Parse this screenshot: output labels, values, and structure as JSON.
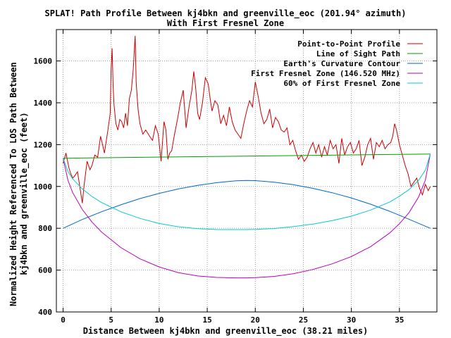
{
  "chart_data": {
    "type": "line",
    "title": "SPLAT! Path Profile Between kj4bkn and greenville_eoc (201.94° azimuth)",
    "subtitle": "With First Fresnel Zone",
    "xlabel": "Distance Between kj4bkn and greenville_eoc (38.21 miles)",
    "ylabel": "Normalized Height Referenced To LOS Path Between\nkj4bkn and greenville_eoc (feet)",
    "xlim": [
      -0.7,
      38.9
    ],
    "ylim": [
      400,
      1750
    ],
    "grid": true,
    "legend_position": "top-right",
    "x_ticks": [
      0,
      5,
      10,
      15,
      20,
      25,
      30,
      35
    ],
    "y_ticks": [
      400,
      600,
      800,
      1000,
      1200,
      1400,
      1600
    ],
    "series": [
      {
        "name": "Point-to-Point Profile",
        "color": "#cc0000",
        "x": [
          0,
          0.3,
          0.6,
          0.8,
          1.0,
          1.2,
          1.5,
          1.8,
          2.0,
          2.2,
          2.5,
          2.8,
          3.0,
          3.3,
          3.6,
          3.9,
          4.1,
          4.3,
          4.5,
          4.7,
          4.9,
          5.0,
          5.1,
          5.2,
          5.3,
          5.5,
          5.7,
          5.9,
          6.1,
          6.3,
          6.5,
          6.7,
          6.9,
          7.1,
          7.3,
          7.5,
          7.6,
          7.8,
          8.0,
          8.3,
          8.6,
          9.0,
          9.3,
          9.6,
          9.9,
          10.2,
          10.5,
          10.7,
          10.9,
          11.1,
          11.3,
          11.6,
          11.9,
          12.2,
          12.5,
          12.8,
          13.1,
          13.4,
          13.6,
          13.8,
          14.0,
          14.2,
          14.5,
          14.8,
          15.1,
          15.3,
          15.5,
          15.8,
          16.1,
          16.4,
          16.7,
          17.0,
          17.3,
          17.6,
          17.9,
          18.2,
          18.5,
          18.8,
          19.1,
          19.4,
          19.7,
          20.0,
          20.3,
          20.6,
          20.9,
          21.2,
          21.5,
          21.8,
          22.1,
          22.4,
          22.7,
          23.0,
          23.3,
          23.6,
          23.9,
          24.2,
          24.5,
          24.8,
          25.1,
          25.4,
          25.7,
          26.0,
          26.3,
          26.6,
          26.9,
          27.2,
          27.5,
          27.8,
          28.1,
          28.4,
          28.7,
          29.0,
          29.3,
          29.6,
          29.9,
          30.2,
          30.5,
          30.8,
          31.1,
          31.4,
          31.7,
          32.0,
          32.3,
          32.6,
          32.9,
          33.2,
          33.5,
          33.8,
          34.1,
          34.3,
          34.5,
          34.7,
          35.0,
          35.3,
          35.6,
          35.9,
          36.2,
          36.5,
          36.8,
          37.1,
          37.4,
          37.7,
          38.0,
          38.21
        ],
        "y": [
          1110,
          1160,
          1090,
          1060,
          1040,
          1050,
          1070,
          980,
          920,
          1010,
          1120,
          1080,
          1100,
          1150,
          1140,
          1240,
          1200,
          1160,
          1220,
          1280,
          1350,
          1560,
          1660,
          1480,
          1390,
          1300,
          1270,
          1320,
          1310,
          1280,
          1350,
          1290,
          1420,
          1460,
          1560,
          1720,
          1500,
          1370,
          1300,
          1250,
          1270,
          1240,
          1220,
          1290,
          1250,
          1120,
          1310,
          1270,
          1130,
          1160,
          1170,
          1250,
          1320,
          1400,
          1460,
          1280,
          1380,
          1460,
          1550,
          1470,
          1350,
          1320,
          1400,
          1520,
          1490,
          1420,
          1360,
          1410,
          1390,
          1300,
          1340,
          1290,
          1380,
          1310,
          1270,
          1250,
          1230,
          1300,
          1360,
          1410,
          1380,
          1500,
          1430,
          1350,
          1300,
          1320,
          1370,
          1280,
          1330,
          1310,
          1270,
          1260,
          1280,
          1200,
          1220,
          1170,
          1130,
          1150,
          1120,
          1140,
          1180,
          1210,
          1160,
          1200,
          1140,
          1190,
          1150,
          1220,
          1180,
          1200,
          1110,
          1230,
          1150,
          1190,
          1210,
          1160,
          1180,
          1220,
          1100,
          1140,
          1200,
          1230,
          1130,
          1210,
          1190,
          1220,
          1180,
          1200,
          1210,
          1240,
          1300,
          1270,
          1200,
          1150,
          1100,
          1060,
          1000,
          1020,
          1040,
          990,
          960,
          1010,
          980,
          1000
        ]
      },
      {
        "name": "Line of Sight Path",
        "color": "#00a000",
        "x": [
          0,
          38.21
        ],
        "y": [
          1135,
          1155
        ]
      },
      {
        "name": "Earth's Curvature Contour",
        "color": "#0066cc",
        "x": [
          0,
          2,
          4,
          6,
          8,
          10,
          12,
          14,
          16,
          18,
          19.1,
          20,
          22,
          24,
          26,
          28,
          30,
          32,
          34,
          36,
          38.21
        ],
        "y": [
          800,
          842,
          879,
          912,
          942,
          967,
          988,
          1005,
          1018,
          1027,
          1029,
          1028,
          1020,
          1008,
          991,
          970,
          945,
          915,
          881,
          843,
          800
        ]
      },
      {
        "name": "First Fresnel Zone (146.520 MHz)",
        "color": "#bb00bb",
        "x": [
          0,
          0.5,
          1,
          2,
          3,
          4,
          6,
          8,
          10,
          12,
          14,
          16,
          18,
          19.1,
          20,
          22,
          24,
          26,
          28,
          30,
          32,
          34,
          35,
          36,
          37,
          37.7,
          38.21
        ],
        "y": [
          1135,
          1030,
          970,
          890,
          830,
          782,
          708,
          654,
          615,
          588,
          572,
          565,
          563,
          563,
          564,
          570,
          583,
          603,
          630,
          665,
          712,
          778,
          822,
          875,
          950,
          1030,
          1155
        ]
      },
      {
        "name": "60% of First Fresnel Zone",
        "color": "#00cccc",
        "x": [
          0,
          0.5,
          1,
          2,
          3,
          4,
          6,
          8,
          10,
          12,
          14,
          16,
          18,
          19.1,
          20,
          22,
          24,
          26,
          28,
          30,
          32,
          34,
          35,
          36,
          37,
          37.7,
          38.21
        ],
        "y": [
          1135,
          1072,
          1036,
          988,
          952,
          923,
          879,
          847,
          823,
          807,
          798,
          794,
          794,
          794,
          795,
          799,
          808,
          820,
          837,
          858,
          887,
          926,
          953,
          985,
          1030,
          1078,
          1155
        ]
      }
    ]
  }
}
